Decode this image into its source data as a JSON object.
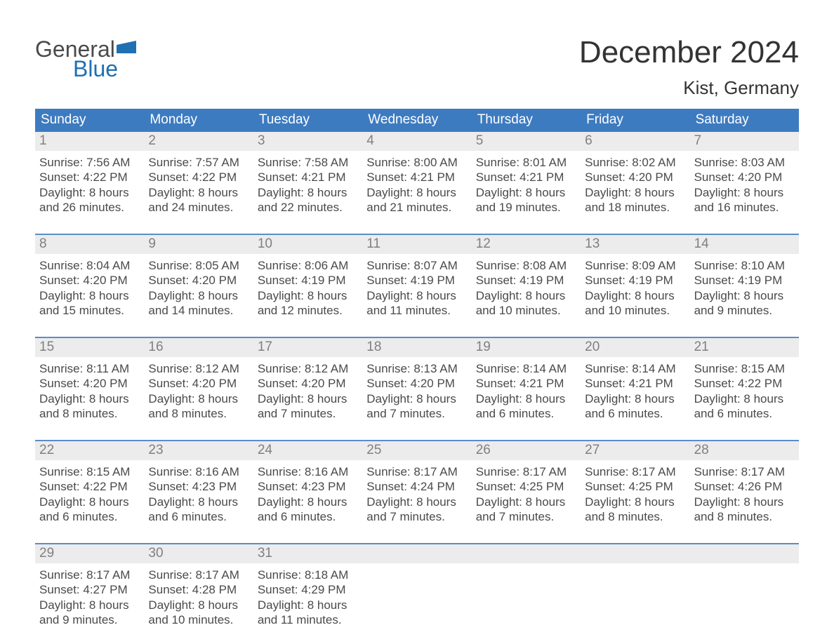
{
  "logo": {
    "line1": "General",
    "line2": "Blue"
  },
  "header": {
    "title": "December 2024",
    "location": "Kist, Germany"
  },
  "colors": {
    "header_blue": "#3d7bc0",
    "border_blue": "#5a8dc7",
    "daybar_bg": "#ececec",
    "text_dark": "#3a3a3a",
    "logo_blue": "#1f6fb3",
    "background": "#ffffff"
  },
  "typography": {
    "title_fontsize": 44,
    "subtitle_fontsize": 26,
    "dow_fontsize": 19,
    "cell_fontsize": 17
  },
  "dow": [
    "Sunday",
    "Monday",
    "Tuesday",
    "Wednesday",
    "Thursday",
    "Friday",
    "Saturday"
  ],
  "days": [
    {
      "n": "1",
      "sunrise": "Sunrise: 7:56 AM",
      "sunset": "Sunset: 4:22 PM",
      "d1": "Daylight: 8 hours",
      "d2": "and 26 minutes."
    },
    {
      "n": "2",
      "sunrise": "Sunrise: 7:57 AM",
      "sunset": "Sunset: 4:22 PM",
      "d1": "Daylight: 8 hours",
      "d2": "and 24 minutes."
    },
    {
      "n": "3",
      "sunrise": "Sunrise: 7:58 AM",
      "sunset": "Sunset: 4:21 PM",
      "d1": "Daylight: 8 hours",
      "d2": "and 22 minutes."
    },
    {
      "n": "4",
      "sunrise": "Sunrise: 8:00 AM",
      "sunset": "Sunset: 4:21 PM",
      "d1": "Daylight: 8 hours",
      "d2": "and 21 minutes."
    },
    {
      "n": "5",
      "sunrise": "Sunrise: 8:01 AM",
      "sunset": "Sunset: 4:21 PM",
      "d1": "Daylight: 8 hours",
      "d2": "and 19 minutes."
    },
    {
      "n": "6",
      "sunrise": "Sunrise: 8:02 AM",
      "sunset": "Sunset: 4:20 PM",
      "d1": "Daylight: 8 hours",
      "d2": "and 18 minutes."
    },
    {
      "n": "7",
      "sunrise": "Sunrise: 8:03 AM",
      "sunset": "Sunset: 4:20 PM",
      "d1": "Daylight: 8 hours",
      "d2": "and 16 minutes."
    },
    {
      "n": "8",
      "sunrise": "Sunrise: 8:04 AM",
      "sunset": "Sunset: 4:20 PM",
      "d1": "Daylight: 8 hours",
      "d2": "and 15 minutes."
    },
    {
      "n": "9",
      "sunrise": "Sunrise: 8:05 AM",
      "sunset": "Sunset: 4:20 PM",
      "d1": "Daylight: 8 hours",
      "d2": "and 14 minutes."
    },
    {
      "n": "10",
      "sunrise": "Sunrise: 8:06 AM",
      "sunset": "Sunset: 4:19 PM",
      "d1": "Daylight: 8 hours",
      "d2": "and 12 minutes."
    },
    {
      "n": "11",
      "sunrise": "Sunrise: 8:07 AM",
      "sunset": "Sunset: 4:19 PM",
      "d1": "Daylight: 8 hours",
      "d2": "and 11 minutes."
    },
    {
      "n": "12",
      "sunrise": "Sunrise: 8:08 AM",
      "sunset": "Sunset: 4:19 PM",
      "d1": "Daylight: 8 hours",
      "d2": "and 10 minutes."
    },
    {
      "n": "13",
      "sunrise": "Sunrise: 8:09 AM",
      "sunset": "Sunset: 4:19 PM",
      "d1": "Daylight: 8 hours",
      "d2": "and 10 minutes."
    },
    {
      "n": "14",
      "sunrise": "Sunrise: 8:10 AM",
      "sunset": "Sunset: 4:19 PM",
      "d1": "Daylight: 8 hours",
      "d2": "and 9 minutes."
    },
    {
      "n": "15",
      "sunrise": "Sunrise: 8:11 AM",
      "sunset": "Sunset: 4:20 PM",
      "d1": "Daylight: 8 hours",
      "d2": "and 8 minutes."
    },
    {
      "n": "16",
      "sunrise": "Sunrise: 8:12 AM",
      "sunset": "Sunset: 4:20 PM",
      "d1": "Daylight: 8 hours",
      "d2": "and 8 minutes."
    },
    {
      "n": "17",
      "sunrise": "Sunrise: 8:12 AM",
      "sunset": "Sunset: 4:20 PM",
      "d1": "Daylight: 8 hours",
      "d2": "and 7 minutes."
    },
    {
      "n": "18",
      "sunrise": "Sunrise: 8:13 AM",
      "sunset": "Sunset: 4:20 PM",
      "d1": "Daylight: 8 hours",
      "d2": "and 7 minutes."
    },
    {
      "n": "19",
      "sunrise": "Sunrise: 8:14 AM",
      "sunset": "Sunset: 4:21 PM",
      "d1": "Daylight: 8 hours",
      "d2": "and 6 minutes."
    },
    {
      "n": "20",
      "sunrise": "Sunrise: 8:14 AM",
      "sunset": "Sunset: 4:21 PM",
      "d1": "Daylight: 8 hours",
      "d2": "and 6 minutes."
    },
    {
      "n": "21",
      "sunrise": "Sunrise: 8:15 AM",
      "sunset": "Sunset: 4:22 PM",
      "d1": "Daylight: 8 hours",
      "d2": "and 6 minutes."
    },
    {
      "n": "22",
      "sunrise": "Sunrise: 8:15 AM",
      "sunset": "Sunset: 4:22 PM",
      "d1": "Daylight: 8 hours",
      "d2": "and 6 minutes."
    },
    {
      "n": "23",
      "sunrise": "Sunrise: 8:16 AM",
      "sunset": "Sunset: 4:23 PM",
      "d1": "Daylight: 8 hours",
      "d2": "and 6 minutes."
    },
    {
      "n": "24",
      "sunrise": "Sunrise: 8:16 AM",
      "sunset": "Sunset: 4:23 PM",
      "d1": "Daylight: 8 hours",
      "d2": "and 6 minutes."
    },
    {
      "n": "25",
      "sunrise": "Sunrise: 8:17 AM",
      "sunset": "Sunset: 4:24 PM",
      "d1": "Daylight: 8 hours",
      "d2": "and 7 minutes."
    },
    {
      "n": "26",
      "sunrise": "Sunrise: 8:17 AM",
      "sunset": "Sunset: 4:25 PM",
      "d1": "Daylight: 8 hours",
      "d2": "and 7 minutes."
    },
    {
      "n": "27",
      "sunrise": "Sunrise: 8:17 AM",
      "sunset": "Sunset: 4:25 PM",
      "d1": "Daylight: 8 hours",
      "d2": "and 8 minutes."
    },
    {
      "n": "28",
      "sunrise": "Sunrise: 8:17 AM",
      "sunset": "Sunset: 4:26 PM",
      "d1": "Daylight: 8 hours",
      "d2": "and 8 minutes."
    },
    {
      "n": "29",
      "sunrise": "Sunrise: 8:17 AM",
      "sunset": "Sunset: 4:27 PM",
      "d1": "Daylight: 8 hours",
      "d2": "and 9 minutes."
    },
    {
      "n": "30",
      "sunrise": "Sunrise: 8:17 AM",
      "sunset": "Sunset: 4:28 PM",
      "d1": "Daylight: 8 hours",
      "d2": "and 10 minutes."
    },
    {
      "n": "31",
      "sunrise": "Sunrise: 8:18 AM",
      "sunset": "Sunset: 4:29 PM",
      "d1": "Daylight: 8 hours",
      "d2": "and 11 minutes."
    }
  ]
}
